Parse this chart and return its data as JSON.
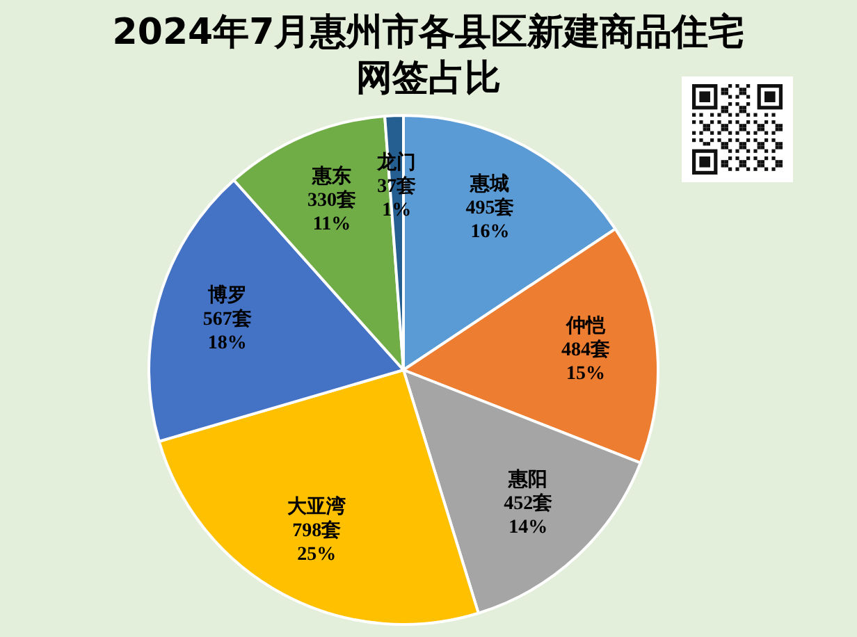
{
  "chart_data": {
    "type": "pie",
    "title": "2024年7月惠州市各县区新建商品住宅网签占比",
    "categories": [
      "惠城",
      "仲恺",
      "惠阳",
      "大亚湾",
      "博罗",
      "惠东",
      "龙门"
    ],
    "values": [
      495,
      484,
      452,
      798,
      567,
      330,
      37
    ],
    "colors": [
      "#5b9bd5",
      "#ed7d31",
      "#a5a5a5",
      "#ffc000",
      "#4472c4",
      "#70ad47",
      "#255e91"
    ],
    "value_labels": [
      "495套\n16%",
      "484套\n15%",
      "452套\n14%",
      "798套\n25%",
      "567套\n18%",
      "330套\n11%",
      "37套\n1%"
    ]
  }
}
